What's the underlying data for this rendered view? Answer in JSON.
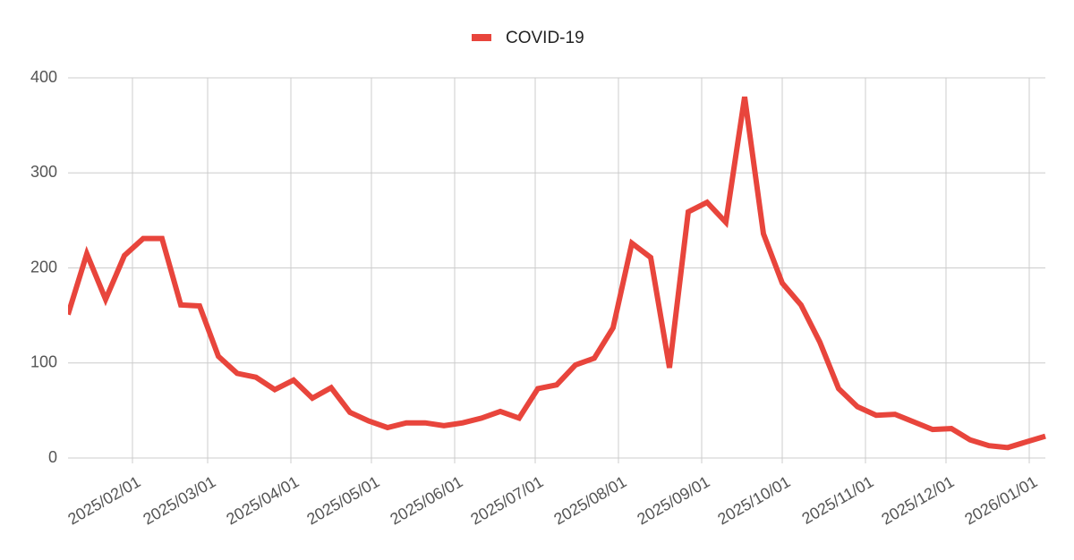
{
  "chart_data": {
    "type": "line",
    "legend": "top",
    "x": [
      "2025/01/08",
      "2025/01/15",
      "2025/01/22",
      "2025/01/29",
      "2025/02/05",
      "2025/02/12",
      "2025/02/19",
      "2025/02/26",
      "2025/03/05",
      "2025/03/12",
      "2025/03/19",
      "2025/03/26",
      "2025/04/02",
      "2025/04/09",
      "2025/04/16",
      "2025/04/23",
      "2025/04/30",
      "2025/05/07",
      "2025/05/14",
      "2025/05/21",
      "2025/05/28",
      "2025/06/04",
      "2025/06/11",
      "2025/06/18",
      "2025/06/25",
      "2025/07/02",
      "2025/07/09",
      "2025/07/16",
      "2025/07/23",
      "2025/07/30",
      "2025/08/06",
      "2025/08/13",
      "2025/08/20",
      "2025/08/27",
      "2025/09/03",
      "2025/09/10",
      "2025/09/17",
      "2025/09/24",
      "2025/10/01",
      "2025/10/08",
      "2025/10/15",
      "2025/10/22",
      "2025/10/29",
      "2025/11/05",
      "2025/11/12",
      "2025/11/19",
      "2025/11/26",
      "2025/12/03",
      "2025/12/10",
      "2025/12/17",
      "2025/12/24",
      "2025/12/31",
      "2026/01/07"
    ],
    "series": [
      {
        "name": "COVID-19",
        "color": "#e8453c",
        "values": [
          151,
          215,
          167,
          213,
          231,
          231,
          161,
          160,
          107,
          89,
          85,
          72,
          82,
          63,
          74,
          48,
          39,
          32,
          37,
          37,
          34,
          37,
          42,
          49,
          42,
          73,
          77,
          98,
          105,
          137,
          226,
          211,
          95,
          259,
          269,
          248,
          380,
          236,
          184,
          161,
          122,
          73,
          54,
          45,
          46,
          38,
          30,
          31,
          19,
          13,
          11,
          17,
          23
        ]
      }
    ],
    "xlim": [
      "2025/01/08",
      "2026/01/07"
    ],
    "xticks": [
      "2025/02/01",
      "2025/03/01",
      "2025/04/01",
      "2025/05/01",
      "2025/06/01",
      "2025/07/01",
      "2025/08/01",
      "2025/09/01",
      "2025/10/01",
      "2025/11/01",
      "2025/12/01",
      "2026/01/01"
    ],
    "ylim": [
      0,
      400
    ],
    "yticks": [
      0,
      100,
      200,
      300,
      400
    ],
    "grid": true
  }
}
